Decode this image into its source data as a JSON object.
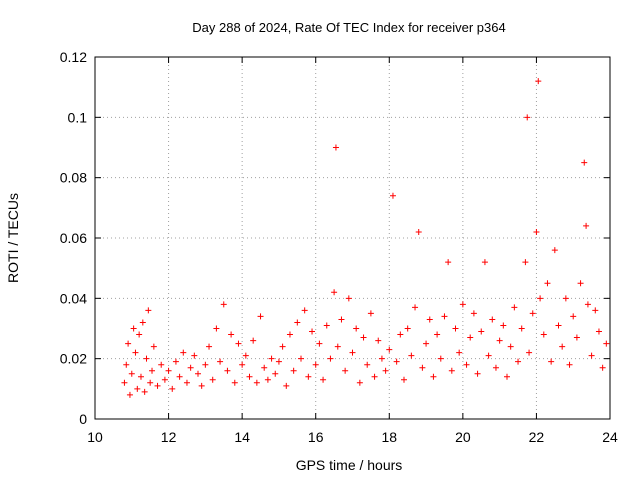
{
  "chart_data": {
    "type": "scatter",
    "title": "Day 288 of 2024, Rate Of TEC Index for receiver p364",
    "xlabel": "GPS time / hours",
    "ylabel": "ROTI / TECUs",
    "xlim": [
      10,
      24
    ],
    "ylim": [
      0,
      0.12
    ],
    "xticks": [
      10,
      12,
      14,
      16,
      18,
      20,
      22,
      24
    ],
    "yticks": [
      0,
      0.02,
      0.04,
      0.06,
      0.08,
      0.1,
      0.12
    ],
    "xtick_labels": [
      "10",
      "12",
      "14",
      "16",
      "18",
      "20",
      "22",
      "24"
    ],
    "ytick_labels": [
      "0",
      "0.02",
      "0.04",
      "0.06",
      "0.08",
      "0.1",
      "0.12"
    ],
    "grid": true,
    "marker": "+",
    "color": "#ff0000",
    "series": [
      {
        "name": "ROTI",
        "points": [
          [
            10.8,
            0.012
          ],
          [
            10.85,
            0.018
          ],
          [
            10.9,
            0.025
          ],
          [
            10.95,
            0.008
          ],
          [
            11.0,
            0.015
          ],
          [
            11.05,
            0.03
          ],
          [
            11.1,
            0.022
          ],
          [
            11.15,
            0.01
          ],
          [
            11.2,
            0.028
          ],
          [
            11.25,
            0.014
          ],
          [
            11.3,
            0.032
          ],
          [
            11.35,
            0.009
          ],
          [
            11.4,
            0.02
          ],
          [
            11.45,
            0.036
          ],
          [
            11.5,
            0.012
          ],
          [
            11.55,
            0.016
          ],
          [
            11.6,
            0.024
          ],
          [
            11.7,
            0.011
          ],
          [
            11.8,
            0.018
          ],
          [
            11.9,
            0.013
          ],
          [
            12.0,
            0.016
          ],
          [
            12.1,
            0.01
          ],
          [
            12.2,
            0.019
          ],
          [
            12.3,
            0.014
          ],
          [
            12.4,
            0.022
          ],
          [
            12.5,
            0.012
          ],
          [
            12.6,
            0.017
          ],
          [
            12.7,
            0.021
          ],
          [
            12.8,
            0.015
          ],
          [
            12.9,
            0.011
          ],
          [
            13.0,
            0.018
          ],
          [
            13.1,
            0.024
          ],
          [
            13.2,
            0.013
          ],
          [
            13.3,
            0.03
          ],
          [
            13.4,
            0.019
          ],
          [
            13.5,
            0.038
          ],
          [
            13.6,
            0.016
          ],
          [
            13.7,
            0.028
          ],
          [
            13.8,
            0.012
          ],
          [
            13.9,
            0.025
          ],
          [
            14.0,
            0.018
          ],
          [
            14.1,
            0.021
          ],
          [
            14.2,
            0.014
          ],
          [
            14.3,
            0.026
          ],
          [
            14.4,
            0.012
          ],
          [
            14.5,
            0.034
          ],
          [
            14.6,
            0.017
          ],
          [
            14.7,
            0.013
          ],
          [
            14.8,
            0.02
          ],
          [
            14.9,
            0.015
          ],
          [
            15.0,
            0.019
          ],
          [
            15.1,
            0.024
          ],
          [
            15.2,
            0.011
          ],
          [
            15.3,
            0.028
          ],
          [
            15.4,
            0.016
          ],
          [
            15.5,
            0.032
          ],
          [
            15.6,
            0.02
          ],
          [
            15.7,
            0.036
          ],
          [
            15.8,
            0.014
          ],
          [
            15.9,
            0.029
          ],
          [
            16.0,
            0.018
          ],
          [
            16.1,
            0.025
          ],
          [
            16.2,
            0.013
          ],
          [
            16.3,
            0.031
          ],
          [
            16.4,
            0.02
          ],
          [
            16.5,
            0.042
          ],
          [
            16.55,
            0.09
          ],
          [
            16.6,
            0.024
          ],
          [
            16.7,
            0.033
          ],
          [
            16.8,
            0.016
          ],
          [
            16.9,
            0.04
          ],
          [
            17.0,
            0.022
          ],
          [
            17.1,
            0.03
          ],
          [
            17.2,
            0.012
          ],
          [
            17.3,
            0.027
          ],
          [
            17.4,
            0.018
          ],
          [
            17.5,
            0.035
          ],
          [
            17.6,
            0.014
          ],
          [
            17.7,
            0.026
          ],
          [
            17.8,
            0.02
          ],
          [
            17.9,
            0.016
          ],
          [
            18.0,
            0.023
          ],
          [
            18.1,
            0.074
          ],
          [
            18.2,
            0.019
          ],
          [
            18.3,
            0.028
          ],
          [
            18.4,
            0.013
          ],
          [
            18.5,
            0.03
          ],
          [
            18.6,
            0.021
          ],
          [
            18.7,
            0.037
          ],
          [
            18.8,
            0.062
          ],
          [
            18.9,
            0.017
          ],
          [
            19.0,
            0.025
          ],
          [
            19.1,
            0.033
          ],
          [
            19.2,
            0.014
          ],
          [
            19.3,
            0.028
          ],
          [
            19.4,
            0.02
          ],
          [
            19.5,
            0.034
          ],
          [
            19.6,
            0.052
          ],
          [
            19.7,
            0.016
          ],
          [
            19.8,
            0.03
          ],
          [
            19.9,
            0.022
          ],
          [
            20.0,
            0.038
          ],
          [
            20.1,
            0.018
          ],
          [
            20.2,
            0.027
          ],
          [
            20.3,
            0.035
          ],
          [
            20.4,
            0.015
          ],
          [
            20.5,
            0.029
          ],
          [
            20.6,
            0.052
          ],
          [
            20.7,
            0.021
          ],
          [
            20.8,
            0.033
          ],
          [
            20.9,
            0.017
          ],
          [
            21.0,
            0.026
          ],
          [
            21.1,
            0.031
          ],
          [
            21.2,
            0.014
          ],
          [
            21.3,
            0.024
          ],
          [
            21.4,
            0.037
          ],
          [
            21.5,
            0.019
          ],
          [
            21.6,
            0.03
          ],
          [
            21.7,
            0.052
          ],
          [
            21.75,
            0.1
          ],
          [
            21.8,
            0.022
          ],
          [
            21.9,
            0.035
          ],
          [
            22.0,
            0.062
          ],
          [
            22.05,
            0.112
          ],
          [
            22.1,
            0.04
          ],
          [
            22.2,
            0.028
          ],
          [
            22.3,
            0.045
          ],
          [
            22.4,
            0.019
          ],
          [
            22.5,
            0.056
          ],
          [
            22.6,
            0.031
          ],
          [
            22.7,
            0.024
          ],
          [
            22.8,
            0.04
          ],
          [
            22.9,
            0.018
          ],
          [
            23.0,
            0.034
          ],
          [
            23.1,
            0.027
          ],
          [
            23.2,
            0.045
          ],
          [
            23.3,
            0.085
          ],
          [
            23.35,
            0.064
          ],
          [
            23.4,
            0.038
          ],
          [
            23.5,
            0.021
          ],
          [
            23.6,
            0.036
          ],
          [
            23.7,
            0.029
          ],
          [
            23.8,
            0.017
          ],
          [
            23.9,
            0.025
          ]
        ]
      }
    ]
  }
}
